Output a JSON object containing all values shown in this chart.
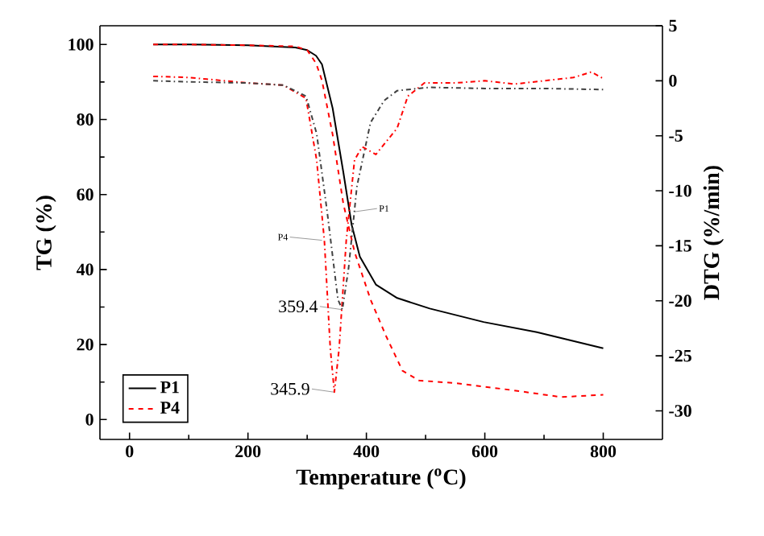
{
  "chart_data": {
    "type": "line",
    "xlabel": "Temperature ($^{o}$C)",
    "ylabel": "TG (%)",
    "y2label": "DTG (%/min)",
    "xlim": [
      -50,
      900
    ],
    "xticks": [
      0,
      200,
      400,
      600,
      800
    ],
    "ylim": [
      -5.3,
      105
    ],
    "yticks": [
      0,
      20,
      40,
      60,
      80,
      100
    ],
    "y2lim": [
      -32.6,
      5
    ],
    "y2ticks": [
      -30,
      -25,
      -20,
      -15,
      -10,
      -5,
      0,
      5
    ],
    "legend": "bottom left",
    "marker": "none",
    "series": [
      {
        "name": "P1",
        "color": "#000000",
        "line_style": "solid",
        "x": [
          40,
          100,
          200,
          280,
          300,
          315,
          325,
          343,
          361,
          375,
          389,
          416,
          452,
          507,
          598,
          688,
          800
        ],
        "values": [
          100,
          100,
          99.8,
          99.2,
          98.5,
          97,
          94.7,
          83,
          66,
          52,
          43.4,
          36,
          32.4,
          29.6,
          26,
          23.3,
          19
        ]
      },
      {
        "name": "P4",
        "color": "#ff0000",
        "line_style": "dashed",
        "x": [
          40,
          100,
          200,
          280,
          300,
          315,
          325,
          343,
          361,
          380,
          407,
          434,
          461,
          489,
          552,
          643,
          729,
          800
        ],
        "values": [
          100,
          100,
          99.8,
          99.5,
          98.5,
          95,
          90.4,
          76,
          57.6,
          44.7,
          32,
          22,
          13,
          10.4,
          9.7,
          7.9,
          6,
          6.6
        ]
      },
      {
        "color": "#404040",
        "line_style": "dotted",
        "axis": "y2",
        "x": [
          40,
          100,
          200,
          260,
          298,
          316,
          334,
          352,
          359.4,
          370,
          384,
          407,
          430,
          452,
          507,
          600,
          700,
          800
        ],
        "values": [
          0,
          -0.1,
          -0.2,
          -0.4,
          -1.4,
          -4.8,
          -12,
          -19.9,
          -20.8,
          -17,
          -9.6,
          -3.8,
          -1.8,
          -0.9,
          -0.6,
          -0.7,
          -0.7,
          -0.8
        ]
      },
      {
        "color": "#ff0000",
        "line_style": "dotted",
        "axis": "y2",
        "x": [
          40,
          100,
          200,
          260,
          298,
          316,
          329,
          339,
          345.9,
          354,
          366,
          380,
          393,
          416,
          452,
          470,
          498,
          550,
          600,
          650,
          700,
          750,
          780,
          800
        ],
        "values": [
          0.4,
          0.3,
          -0.2,
          -0.4,
          -1.6,
          -7.2,
          -14.5,
          -24.3,
          -28.3,
          -24.3,
          -14.5,
          -7.2,
          -6,
          -6.7,
          -4.3,
          -1.4,
          -0.2,
          -0.2,
          0,
          -0.3,
          0,
          0.3,
          0.8,
          0.2
        ]
      }
    ],
    "annotations": [
      {
        "text": "359.4",
        "x": 359.4,
        "y": 29.3
      },
      {
        "text": "345.9",
        "x": 345.9,
        "y": 7.3
      },
      {
        "text": "P1",
        "x": 380,
        "y": 55.4
      },
      {
        "text": "P4",
        "x": 325,
        "y": 47.8
      }
    ]
  }
}
